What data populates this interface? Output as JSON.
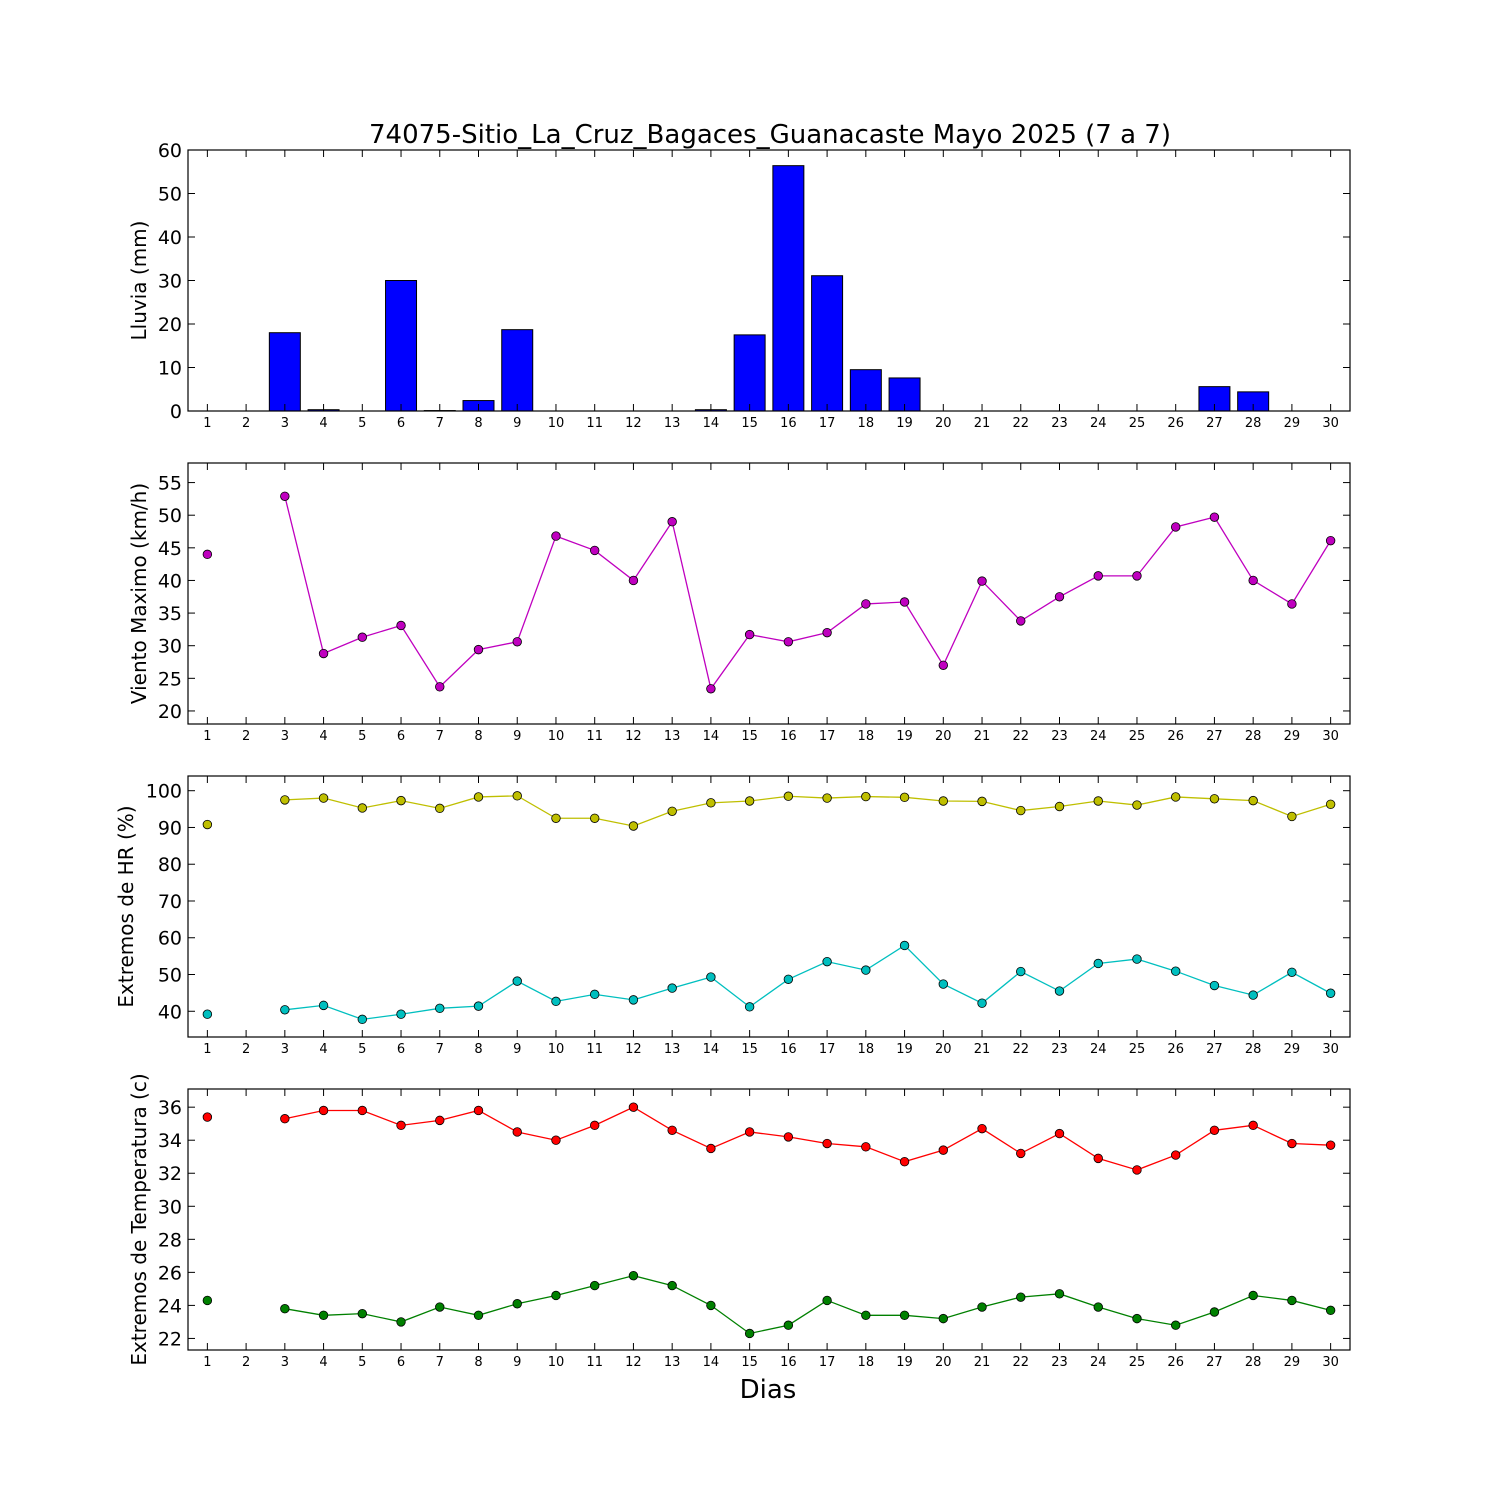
{
  "title": "74075-Sitio_La_Cruz_Bagaces_Guanacaste Mayo 2025  (7 a 7)",
  "xlabel": "Dias",
  "days": [
    1,
    2,
    3,
    4,
    5,
    6,
    7,
    8,
    9,
    10,
    11,
    12,
    13,
    14,
    15,
    16,
    17,
    18,
    19,
    20,
    21,
    22,
    23,
    24,
    25,
    26,
    27,
    28,
    29,
    30
  ],
  "chart_data": [
    {
      "type": "bar",
      "ylabel": "Lluvia (mm)",
      "ylim": [
        0,
        60
      ],
      "yticks": [
        0,
        10,
        20,
        30,
        40,
        50,
        60
      ],
      "series": [
        {
          "color": "#0000ff",
          "values": [
            0,
            0,
            18,
            0.3,
            0,
            30,
            0.1,
            2.4,
            18.7,
            0,
            0,
            0,
            0,
            0.3,
            17.5,
            56.4,
            31.1,
            9.5,
            7.6,
            0,
            0,
            0,
            0,
            0,
            0,
            0,
            5.6,
            4.4,
            0,
            0
          ]
        }
      ]
    },
    {
      "type": "line",
      "ylabel": "Viento Maximo (km/h)",
      "ylim": [
        18,
        58
      ],
      "yticks": [
        20,
        25,
        30,
        35,
        40,
        45,
        50,
        55
      ],
      "series": [
        {
          "color": "#bf00bf",
          "values": [
            44.0,
            null,
            52.9,
            28.8,
            31.3,
            33.1,
            23.7,
            29.4,
            30.6,
            46.8,
            44.6,
            40.0,
            49.0,
            23.4,
            31.7,
            30.6,
            32.0,
            36.4,
            36.7,
            27.0,
            39.9,
            33.8,
            37.5,
            40.7,
            40.7,
            48.2,
            49.7,
            40.0,
            36.4,
            46.1
          ]
        }
      ]
    },
    {
      "type": "line",
      "ylabel": "Extremos de HR (%)",
      "ylim": [
        33,
        104
      ],
      "yticks": [
        40,
        50,
        60,
        70,
        80,
        90,
        100
      ],
      "series": [
        {
          "color": "#bfbf00",
          "values": [
            90.8,
            null,
            97.5,
            98.0,
            95.3,
            97.3,
            95.2,
            98.3,
            98.6,
            92.5,
            92.5,
            90.4,
            94.4,
            96.7,
            97.2,
            98.5,
            98.0,
            98.4,
            98.2,
            97.2,
            97.1,
            94.6,
            95.7,
            97.2,
            96.1,
            98.3,
            97.8,
            97.3,
            93.0,
            96.3
          ]
        },
        {
          "color": "#00bfbf",
          "values": [
            39.2,
            null,
            40.4,
            41.6,
            37.8,
            39.2,
            40.8,
            41.4,
            48.2,
            42.7,
            44.6,
            43.1,
            46.3,
            49.3,
            41.2,
            48.7,
            53.5,
            51.2,
            57.9,
            47.4,
            42.2,
            50.8,
            45.5,
            53.0,
            54.2,
            50.9,
            47.0,
            44.4,
            50.6,
            44.9
          ]
        }
      ]
    },
    {
      "type": "line",
      "ylabel": "Extremos de Temperatura (c)",
      "ylim": [
        21.3,
        37.1
      ],
      "yticks": [
        22,
        24,
        26,
        28,
        30,
        32,
        34,
        36
      ],
      "series": [
        {
          "color": "#ff0000",
          "values": [
            35.4,
            null,
            35.3,
            35.8,
            35.8,
            34.9,
            35.2,
            35.8,
            34.5,
            34.0,
            34.9,
            36.0,
            34.6,
            33.5,
            34.5,
            34.2,
            33.8,
            33.6,
            32.7,
            33.4,
            34.7,
            33.2,
            34.4,
            32.9,
            32.2,
            33.1,
            34.6,
            34.9,
            33.8,
            33.7
          ]
        },
        {
          "color": "#008000",
          "values": [
            24.3,
            null,
            23.8,
            23.4,
            23.5,
            23.0,
            23.9,
            23.4,
            24.1,
            24.6,
            25.2,
            25.8,
            25.2,
            24.0,
            22.3,
            22.8,
            24.3,
            23.4,
            23.4,
            23.2,
            23.9,
            24.5,
            24.7,
            23.9,
            23.2,
            22.8,
            23.6,
            24.6,
            24.3,
            23.7
          ]
        }
      ]
    }
  ]
}
